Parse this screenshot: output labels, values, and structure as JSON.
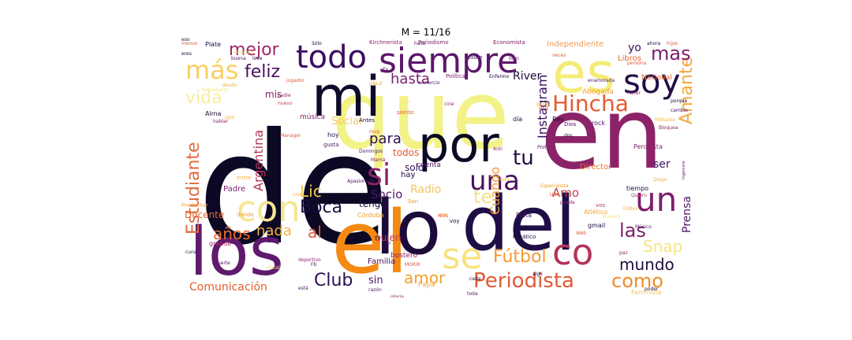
{
  "chart_data": {
    "type": "wordcloud",
    "title": "M = 11/16",
    "colormap": "inferno",
    "words": [
      {
        "text": "de",
        "weight": 100,
        "color": "#0b0924"
      },
      {
        "text": "que",
        "weight": 86,
        "color": "#f2f286"
      },
      {
        "text": "en",
        "weight": 78,
        "color": "#8c2369"
      },
      {
        "text": "el",
        "weight": 68,
        "color": "#f48913"
      },
      {
        "text": "los",
        "weight": 60,
        "color": "#5f1a6d"
      },
      {
        "text": "del",
        "weight": 58,
        "color": "#1e0e46"
      },
      {
        "text": "lo",
        "weight": 54,
        "color": "#1c0b3a"
      },
      {
        "text": "mi",
        "weight": 50,
        "color": "#0e0a29"
      },
      {
        "text": "es",
        "weight": 48,
        "color": "#f5ec78"
      },
      {
        "text": "por",
        "weight": 44,
        "color": "#0b0924"
      },
      {
        "text": "siempre",
        "weight": 34,
        "color": "#5c176b"
      },
      {
        "text": "se",
        "weight": 32,
        "color": "#f6e27f"
      },
      {
        "text": "co",
        "weight": 32,
        "color": "#b53359"
      },
      {
        "text": "con",
        "weight": 30,
        "color": "#f5e692"
      },
      {
        "text": "soy",
        "weight": 30,
        "color": "#220c48"
      },
      {
        "text": "un",
        "weight": 30,
        "color": "#7e1e6c"
      },
      {
        "text": "todo",
        "weight": 28,
        "color": "#3b0f5e"
      },
      {
        "text": "Hincha",
        "weight": 22,
        "color": "#e35b31"
      },
      {
        "text": "si",
        "weight": 26,
        "color": "#8b226a"
      },
      {
        "text": "una",
        "weight": 24,
        "color": "#4a1060"
      },
      {
        "text": "más",
        "weight": 24,
        "color": "#f7d060"
      },
      {
        "text": "Periodista",
        "weight": 20,
        "color": "#e05a37"
      },
      {
        "text": "Amante",
        "weight": 18,
        "color": "#f4a93e"
      },
      {
        "text": "Estudiante",
        "weight": 18,
        "color": "#e06a3e"
      },
      {
        "text": "mas",
        "weight": 18,
        "color": "#7a1d6d"
      },
      {
        "text": "como",
        "weight": 18,
        "color": "#f08c2a"
      },
      {
        "text": "Fútbol",
        "weight": 17,
        "color": "#f49a33"
      },
      {
        "text": "Boca",
        "weight": 17,
        "color": "#1a0b3c"
      },
      {
        "text": "las",
        "weight": 17,
        "color": "#7d1f6b"
      },
      {
        "text": "te",
        "weight": 17,
        "color": "#f4e08a"
      },
      {
        "text": "tu",
        "weight": 17,
        "color": "#220c4a"
      },
      {
        "text": "Club",
        "weight": 16,
        "color": "#2c0f56"
      },
      {
        "text": "mundo",
        "weight": 16,
        "color": "#1f0d3f"
      },
      {
        "text": "amor",
        "weight": 16,
        "color": "#f2a028"
      },
      {
        "text": "Snap",
        "weight": 16,
        "color": "#f6e386"
      },
      {
        "text": "mejor",
        "weight": 16,
        "color": "#9e2766"
      },
      {
        "text": "feliz",
        "weight": 16,
        "color": "#4a1060"
      },
      {
        "text": "vida",
        "weight": 16,
        "color": "#f8ee9a"
      },
      {
        "text": "para",
        "weight": 15,
        "color": "#2d0f56"
      },
      {
        "text": "hasta",
        "weight": 15,
        "color": "#7a1d6d"
      },
      {
        "text": "al",
        "weight": 15,
        "color": "#dc5a39"
      },
      {
        "text": "nada",
        "weight": 15,
        "color": "#f4b33e"
      },
      {
        "text": "años",
        "weight": 15,
        "color": "#e56a2d"
      },
      {
        "text": "Lic",
        "weight": 15,
        "color": "#f2c94e"
      },
      {
        "text": "Instagram",
        "weight": 14,
        "color": "#3a0e5e"
      },
      {
        "text": "Argentina",
        "weight": 13,
        "color": "#b6355a"
      },
      {
        "text": "Comunicación",
        "weight": 13,
        "color": "#e3612d"
      },
      {
        "text": "Cuando",
        "weight": 12,
        "color": "#f49a2e"
      },
      {
        "text": "Prensa",
        "weight": 12,
        "color": "#501466"
      },
      {
        "text": "Socio",
        "weight": 12,
        "color": "#501466"
      },
      {
        "text": "Amo",
        "weight": 12,
        "color": "#c43e4e"
      },
      {
        "text": "River",
        "weight": 12,
        "color": "#1c0b3a"
      },
      {
        "text": "Radio",
        "weight": 11,
        "color": "#f5c35e"
      },
      {
        "text": "Social",
        "weight": 11,
        "color": "#f3c86b"
      },
      {
        "text": "yo",
        "weight": 11,
        "color": "#3a0e5e"
      },
      {
        "text": "ser",
        "weight": 11,
        "color": "#3a0e5e"
      },
      {
        "text": "sin",
        "weight": 11,
        "color": "#501466"
      },
      {
        "text": "quien",
        "weight": 11,
        "color": "#c33e4b"
      },
      {
        "text": "todos",
        "weight": 11,
        "color": "#e55b30"
      },
      {
        "text": "tengo",
        "weight": 11,
        "color": "#1e0d3e"
      },
      {
        "text": "solo",
        "weight": 11,
        "color": "#380e5c"
      },
      {
        "text": "Docente",
        "weight": 10,
        "color": "#e36a2b"
      },
      {
        "text": "mis",
        "weight": 10,
        "color": "#8a2269"
      },
      {
        "text": "Libros",
        "weight": 9,
        "color": "#e56b3a"
      },
      {
        "text": "Independiente",
        "weight": 9,
        "color": "#f09d52"
      },
      {
        "text": "Director",
        "weight": 9,
        "color": "#e3732f"
      },
      {
        "text": "Padre",
        "weight": 9,
        "color": "#7b1f6c"
      },
      {
        "text": "hay",
        "weight": 9,
        "color": "#1c0b3a"
      },
      {
        "text": "Abogada",
        "weight": 8,
        "color": "#f49c3c"
      },
      {
        "text": "Nacional",
        "weight": 8,
        "color": "#e5672a"
      },
      {
        "text": "música",
        "weight": 8,
        "color": "#8c2369"
      },
      {
        "text": "cuenta",
        "weight": 8,
        "color": "#501466"
      },
      {
        "text": "Familia",
        "weight": 8,
        "color": "#4a1060"
      },
      {
        "text": "Papá",
        "weight": 8,
        "color": "#f4a53a"
      },
      {
        "text": "bostero",
        "weight": 8,
        "color": "#8b2469"
      },
      {
        "text": "tiempo",
        "weight": 8,
        "color": "#1c0b3a"
      },
      {
        "text": "Córdoba",
        "weight": 7,
        "color": "#f2a028"
      },
      {
        "text": "Plata",
        "weight": 7,
        "color": "#4a1060"
      },
      {
        "text": "Plate",
        "weight": 7,
        "color": "#220c48"
      },
      {
        "text": "grande",
        "weight": 7,
        "color": "#9e2766"
      },
      {
        "text": "hoy",
        "weight": 7,
        "color": "#1c0b3a"
      },
      {
        "text": "día",
        "weight": 7,
        "color": "#1c0b3a"
      },
      {
        "text": "Rey",
        "weight": 7,
        "color": "#1c0b3a"
      },
      {
        "text": "rock",
        "weight": 7,
        "color": "#501466"
      },
      {
        "text": "Atlético",
        "weight": 7,
        "color": "#f4a43f"
      },
      {
        "text": "gmail",
        "weight": 7,
        "color": "#220c48"
      },
      {
        "text": "Alma",
        "weight": 7,
        "color": "#1c0b3a"
      },
      {
        "text": "Peronista",
        "weight": 7,
        "color": "#8a2269"
      },
      {
        "text": "Arg",
        "weight": 7,
        "color": "#e0592f"
      },
      {
        "text": "Política",
        "weight": 6,
        "color": "#7b1f6c"
      },
      {
        "text": "Madre",
        "weight": 6,
        "color": "#501466"
      },
      {
        "text": "Dios",
        "weight": 6,
        "color": "#501466"
      },
      {
        "text": "Periodismo",
        "weight": 6,
        "color": "#7b1f6c"
      },
      {
        "text": "Economista",
        "weight": 6,
        "color": "#7b1f6c"
      },
      {
        "text": "Kirchnerista",
        "weight": 6,
        "color": "#8c2369"
      },
      {
        "text": "Feminista",
        "weight": 6,
        "color": "#f6c45d"
      },
      {
        "text": "Productor",
        "weight": 6,
        "color": "#f4a43f"
      },
      {
        "text": "Fanático",
        "weight": 6,
        "color": "#1c0b3a"
      },
      {
        "text": "vos",
        "weight": 6,
        "color": "#b33659"
      },
      {
        "text": "voy",
        "weight": 6,
        "color": "#1c0b3a"
      },
      {
        "text": "San",
        "weight": 6,
        "color": "#f49a2e"
      },
      {
        "text": "entre",
        "weight": 6,
        "color": "#f4b33e"
      },
      {
        "text": "donde",
        "weight": 6,
        "color": "#f49a2e"
      },
      {
        "text": "Antes",
        "weight": 6,
        "color": "#1c0b3a"
      },
      {
        "text": "gusta",
        "weight": 6,
        "color": "#501466"
      },
      {
        "text": "siento",
        "weight": 6,
        "color": "#e55b30"
      },
      {
        "text": "nuevo",
        "weight": 6,
        "color": "#c43e4e"
      },
      {
        "text": "Ingeniero",
        "weight": 5,
        "color": "#501466"
      },
      {
        "text": "Especialista",
        "weight": 5,
        "color": "#f2a028"
      },
      {
        "text": "Quiero",
        "weight": 5,
        "color": "#b33659"
      },
      {
        "text": "poder",
        "weight": 5,
        "color": "#1c0b3a"
      },
      {
        "text": "toda",
        "weight": 5,
        "color": "#501466"
      },
      {
        "text": "está",
        "weight": 5,
        "color": "#501466"
      },
      {
        "text": "cada",
        "weight": 5,
        "color": "#1c0b3a"
      },
      {
        "text": "gloria",
        "weight": 5,
        "color": "#8c2369"
      },
      {
        "text": "razón",
        "weight": 5,
        "color": "#501466"
      },
      {
        "text": "oficial",
        "weight": 5,
        "color": "#f6e386"
      },
      {
        "text": "muerte",
        "weight": 5,
        "color": "#501466"
      },
      {
        "text": "algo",
        "weight": 5,
        "color": "#1c0b3a"
      },
      {
        "text": "puede",
        "weight": 5,
        "color": "#8c2369"
      },
      {
        "text": "Web",
        "weight": 5,
        "color": "#e05a37"
      },
      {
        "text": "Buenos",
        "weight": 5,
        "color": "#f6e386"
      },
      {
        "text": "UBA",
        "weight": 5,
        "color": "#e05a37"
      },
      {
        "text": "porque",
        "weight": 5,
        "color": "#1c0b3a"
      },
      {
        "text": "cambio",
        "weight": 5,
        "color": "#501466"
      },
      {
        "text": "hacer",
        "weight": 5,
        "color": "#8c2369"
      },
      {
        "text": "persona",
        "weight": 5,
        "color": "#e05a37"
      },
      {
        "text": "enamorada",
        "weight": 5,
        "color": "#501466"
      },
      {
        "text": "Militante",
        "weight": 5,
        "color": "#f4b33e"
      },
      {
        "text": "hijos",
        "weight": 5,
        "color": "#e05a37"
      },
      {
        "text": "ahora",
        "weight": 5,
        "color": "#1c0b3a"
      },
      {
        "text": "veces",
        "weight": 5,
        "color": "#e05a37"
      },
      {
        "text": "bien",
        "weight": 5,
        "color": "#8c2369"
      },
      {
        "text": "hace",
        "weight": 5,
        "color": "#501466"
      },
      {
        "text": "Sólo",
        "weight": 5,
        "color": "#1c0b3a"
      },
      {
        "text": "buena",
        "weight": 5,
        "color": "#501466"
      },
      {
        "text": "love",
        "weight": 5,
        "color": "#1c0b3a"
      },
      {
        "text": "eres",
        "weight": 5,
        "color": "#1c0b3a"
      },
      {
        "text": "menos",
        "weight": 5,
        "color": "#e05a37"
      },
      {
        "text": "desde",
        "weight": 5,
        "color": "#f4b33e"
      },
      {
        "text": "Refundador",
        "weight": 5,
        "color": "#f6e386"
      },
      {
        "text": "hablar",
        "weight": 5,
        "color": "#8c2369"
      },
      {
        "text": "Manager",
        "weight": 5,
        "color": "#e05a37"
      },
      {
        "text": "Mamá",
        "weight": 5,
        "color": "#8c2369"
      },
      {
        "text": "Apasionado",
        "weight": 5,
        "color": "#501466"
      },
      {
        "text": "Enfermo",
        "weight": 5,
        "color": "#1c0b3a"
      },
      {
        "text": "Domingos",
        "weight": 5,
        "color": "#501466"
      },
      {
        "text": "Prof",
        "weight": 5,
        "color": "#501466"
      },
      {
        "text": "Anti",
        "weight": 5,
        "color": "#8c2369"
      },
      {
        "text": "jugador",
        "weight": 5,
        "color": "#e05a37"
      },
      {
        "text": "UNLZ",
        "weight": 5,
        "color": "#f2a028"
      },
      {
        "text": "cine",
        "weight": 5,
        "color": "#8c2369"
      },
      {
        "text": "otro",
        "weight": 5,
        "color": "#f6e386"
      },
      {
        "text": "muy",
        "weight": 5,
        "color": "#e05a37"
      },
      {
        "text": "vive",
        "weight": 5,
        "color": "#f4b33e"
      },
      {
        "text": "vivo",
        "weight": 5,
        "color": "#f4b33e"
      },
      {
        "text": "Fb",
        "weight": 5,
        "color": "#501466"
      },
      {
        "text": "NOS",
        "weight": 5,
        "color": "#e05a37"
      },
      {
        "text": "TV",
        "weight": 5,
        "color": "#1c0b3a"
      },
      {
        "text": "su",
        "weight": 5,
        "color": "#501466"
      },
      {
        "text": "Diego",
        "weight": 5,
        "color": "#f4b33e"
      },
      {
        "text": "Músico",
        "weight": 5,
        "color": "#501466"
      },
      {
        "text": "Bloquea",
        "weight": 5,
        "color": "#8c2369"
      },
      {
        "text": "gente",
        "weight": 5,
        "color": "#f4b33e"
      },
      {
        "text": "dos",
        "weight": 5,
        "color": "#1c0b3a"
      },
      {
        "text": "cuna",
        "weight": 5,
        "color": "#1c0b3a"
      },
      {
        "text": "paz",
        "weight": 5,
        "color": "#8c2369"
      },
      {
        "text": "Fútbol",
        "weight": 5,
        "color": "#f4b33e"
      },
      {
        "text": "comercio",
        "weight": 5,
        "color": "#501466"
      },
      {
        "text": "nadie",
        "weight": 5,
        "color": "#8c2369"
      },
      {
        "text": "ojos",
        "weight": 5,
        "color": "#f4b33e"
      },
      {
        "text": "abogado",
        "weight": 5,
        "color": "#f6e386"
      },
      {
        "text": "deportivo",
        "weight": 5,
        "color": "#8c2369"
      },
      {
        "text": "MORIR",
        "weight": 5,
        "color": "#e05a37"
      },
      {
        "text": "esta",
        "weight": 5,
        "color": "#f4b33e"
      },
      {
        "text": "Ex",
        "weight": 5,
        "color": "#501466"
      },
      {
        "text": "eso",
        "weight": 5,
        "color": "#1c0b3a"
      }
    ]
  }
}
